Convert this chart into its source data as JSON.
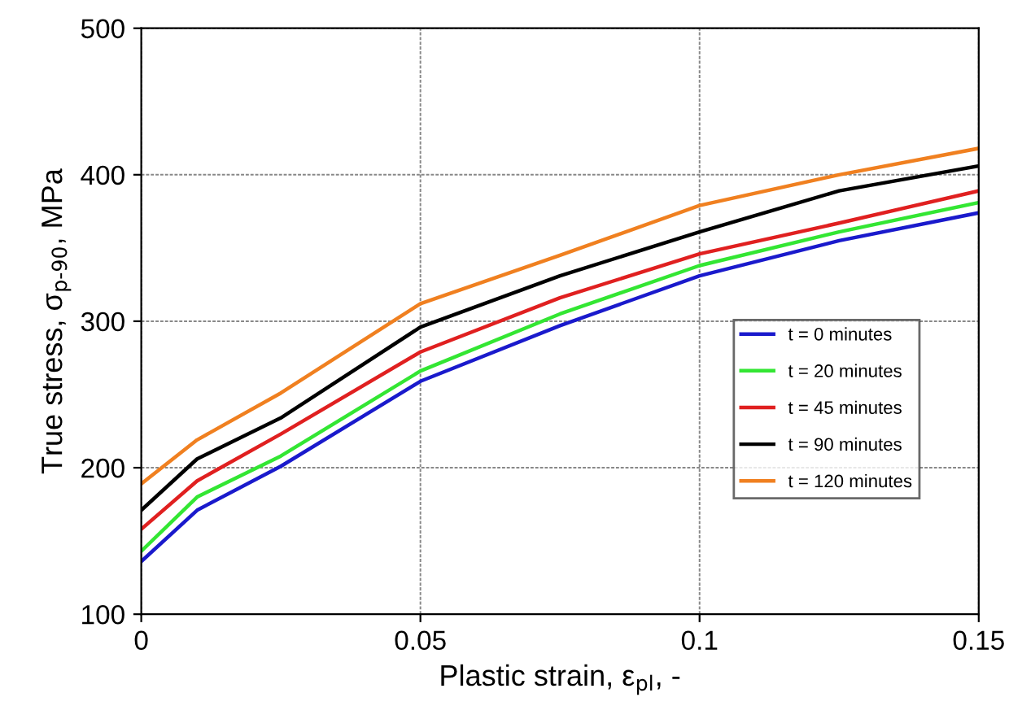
{
  "chart_data": {
    "type": "line",
    "xlabel": "Plastic strain, ε$_{pl}$, -",
    "ylabel": "True stress, σ$_{p-90}$, MPa",
    "x": [
      0,
      0.01,
      0.025,
      0.05,
      0.075,
      0.1,
      0.125,
      0.15
    ],
    "series": [
      {
        "name": "t = 0 minutes",
        "color": "#1a1acc",
        "values": [
          136,
          171,
          201,
          259,
          297,
          331,
          355,
          374
        ]
      },
      {
        "name": "t = 20 minutes",
        "color": "#33e633",
        "values": [
          143,
          180,
          208,
          266,
          305,
          338,
          361,
          381
        ]
      },
      {
        "name": "t = 45 minutes",
        "color": "#e02020",
        "values": [
          158,
          191,
          223,
          279,
          316,
          346,
          367,
          389
        ]
      },
      {
        "name": "t = 90 minutes",
        "color": "#000000",
        "values": [
          171,
          206,
          234,
          296,
          331,
          361,
          389,
          406
        ]
      },
      {
        "name": "t = 120 minutes",
        "color": "#f08020",
        "values": [
          189,
          219,
          251,
          312,
          345,
          379,
          400,
          418
        ]
      }
    ],
    "xlim": [
      0,
      0.15
    ],
    "ylim": [
      100,
      500
    ],
    "xticks": [
      0,
      0.05,
      0.1,
      0.15
    ],
    "yticks": [
      100,
      200,
      300,
      400,
      500
    ],
    "grid": true,
    "legend": "right",
    "marker": "none",
    "line_style": "solid"
  }
}
